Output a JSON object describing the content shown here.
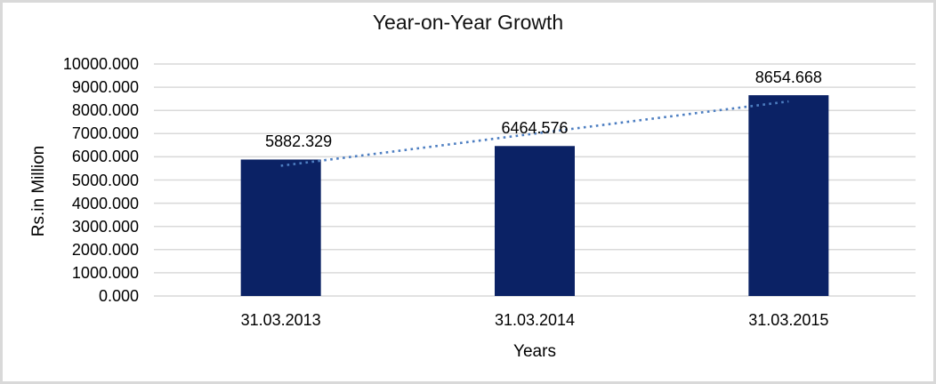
{
  "chart_data": {
    "type": "bar",
    "title": "Year-on-Year Growth",
    "xlabel": "Years",
    "ylabel": "Rs.in Million",
    "categories": [
      "31.03.2013",
      "31.03.2014",
      "31.03.2015"
    ],
    "series": [
      {
        "name": "Rs.in Million",
        "values": [
          5882.329,
          6464.576,
          8654.668
        ]
      }
    ],
    "data_labels": [
      "5882.329",
      "6464.576",
      "8654.668"
    ],
    "ylim": [
      0,
      10000
    ],
    "ytick_step": 1000,
    "ytick_labels": [
      "0.000",
      "1000.000",
      "2000.000",
      "3000.000",
      "4000.000",
      "5000.000",
      "6000.000",
      "7000.000",
      "8000.000",
      "9000.000",
      "10000.000"
    ],
    "grid": true,
    "legend_position": "none",
    "trendline": {
      "type": "linear",
      "style": "dotted"
    },
    "colors": {
      "bar": "#0b2265",
      "trendline": "#4d7ec1",
      "gridline": "#d9d9d9",
      "chart_border": "#d9d9d9",
      "text": "#000000"
    }
  }
}
